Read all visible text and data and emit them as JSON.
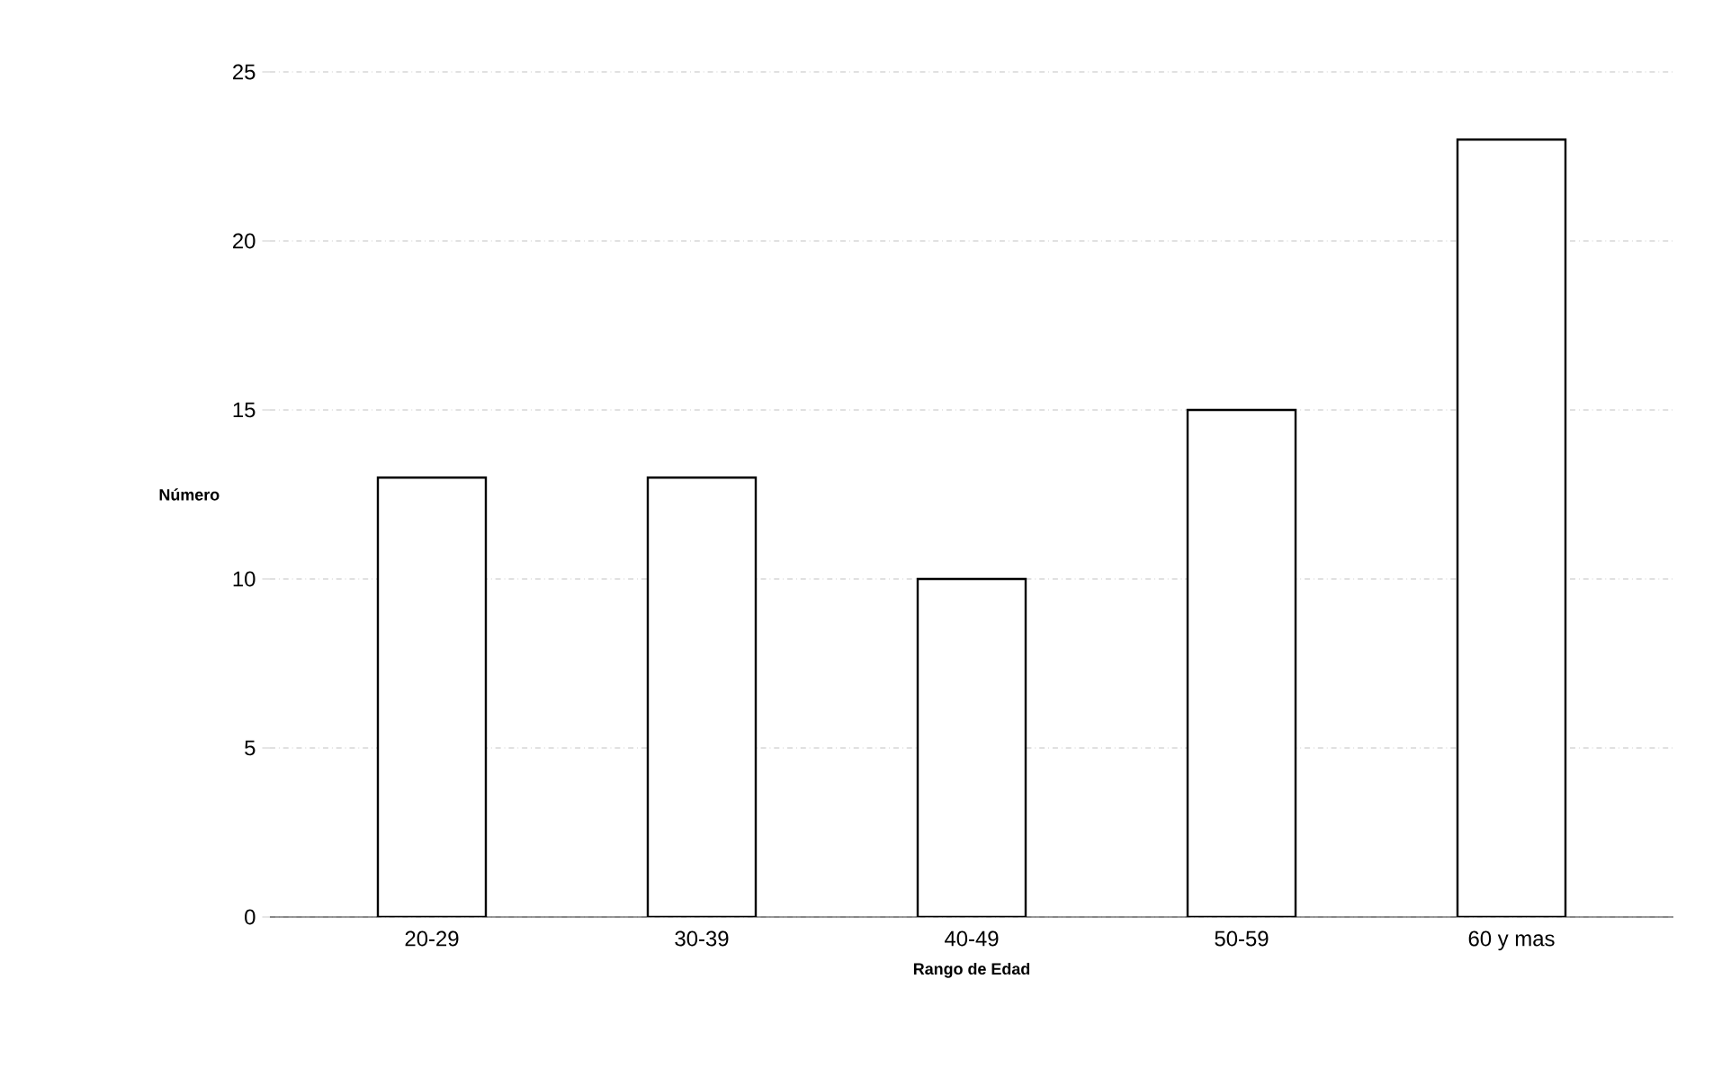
{
  "chart_data": {
    "type": "bar",
    "xlabel": "Rango de Edad",
    "ylabel": "Número",
    "categories": [
      "20-29",
      "30-39",
      "40-49",
      "50-59",
      "60 y mas"
    ],
    "values": [
      13,
      13,
      10,
      15,
      23
    ],
    "color": "#ffffff",
    "ylim": [
      0,
      25
    ],
    "yticks": [
      0,
      5,
      10,
      15,
      20,
      25
    ],
    "grid": "y"
  }
}
